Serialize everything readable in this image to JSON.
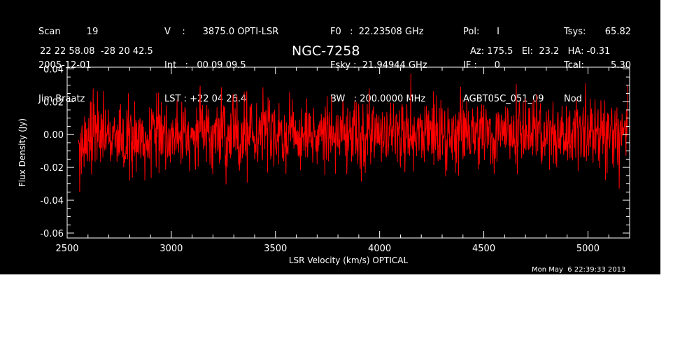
{
  "header": {
    "col1": [
      "Scan         19",
      "2005-12-01",
      "Jim Braatz"
    ],
    "col2": [
      "V    :      3875.0 OPTI-LSR",
      "Int   :   00 09 09.5",
      "LST : +22 04 26.4"
    ],
    "col3": [
      "F0   :  22.23508 GHz",
      "Fsky :  21.94944 GHz",
      "BW   : 200.0000 MHz"
    ],
    "col4": [
      "Pol:      I",
      "IF :      0",
      "AGBT05C_051_09"
    ],
    "col5": [
      "Tsys:",
      "Tcal:",
      "Nod"
    ],
    "col6": [
      "65.82",
      "5.30",
      ""
    ],
    "coords": "22 22 58.08  -28 20 42.5",
    "azel": "Az: 175.5   El:  23.2   HA: -0.31",
    "object": "NGC-7258",
    "datestamp": "Mon May  6 22:39:33 2013"
  },
  "chart_data": {
    "type": "line",
    "title": "NGC-7258",
    "xlabel": "LSR Velocity (km/s) OPTICAL",
    "ylabel": "Flux Density (Jy)",
    "xlim": [
      2500,
      5200
    ],
    "ylim": [
      -0.063,
      0.041
    ],
    "x_ticks": [
      2500,
      3000,
      3500,
      4000,
      4500,
      5000
    ],
    "x_tick_labels": [
      "2500",
      "3000",
      "3500",
      "4000",
      "4500",
      "5000"
    ],
    "y_ticks": [
      -0.06,
      -0.04,
      -0.02,
      0.0,
      0.02,
      0.04
    ],
    "y_tick_labels": [
      "-0.06",
      "-0.04",
      "-0.02",
      "0.00",
      "0.02",
      "0.04"
    ],
    "grid": false,
    "series": [
      {
        "color": "#ff0000",
        "x_range": [
          2555,
          5190
        ],
        "noise_rms_jy": 0.011,
        "x": [
          2560,
          2580,
          2600,
          2625,
          2650,
          2700,
          2750,
          2800,
          2850,
          2900,
          2950,
          3000,
          3050,
          3100,
          3150,
          3200,
          3250,
          3300,
          3350,
          3400,
          3450,
          3500,
          3550,
          3600,
          3650,
          3700,
          3750,
          3800,
          3850,
          3900,
          3950,
          4000,
          4050,
          4100,
          4150,
          4200,
          4250,
          4300,
          4350,
          4400,
          4450,
          4500,
          4550,
          4600,
          4650,
          4700,
          4750,
          4800,
          4850,
          4900,
          4950,
          5000,
          5050,
          5100,
          5150,
          5190
        ],
        "y": [
          -0.035,
          -0.008,
          0.004,
          0.028,
          0.012,
          -0.006,
          0.015,
          -0.028,
          0.01,
          0.003,
          -0.012,
          0.007,
          0.02,
          -0.004,
          0.018,
          -0.01,
          0.012,
          0.006,
          0.026,
          -0.015,
          0.014,
          -0.008,
          -0.024,
          0.002,
          0.022,
          -0.018,
          0.006,
          0.012,
          -0.01,
          0.016,
          0.028,
          -0.006,
          0.013,
          -0.02,
          0.037,
          0.009,
          -0.012,
          0.016,
          0.006,
          -0.015,
          0.011,
          0.018,
          -0.024,
          0.008,
          -0.012,
          0.022,
          -0.006,
          0.014,
          -0.02,
          0.01,
          0.004,
          0.012,
          -0.016,
          0.011,
          -0.033,
          0.03
        ]
      }
    ]
  }
}
